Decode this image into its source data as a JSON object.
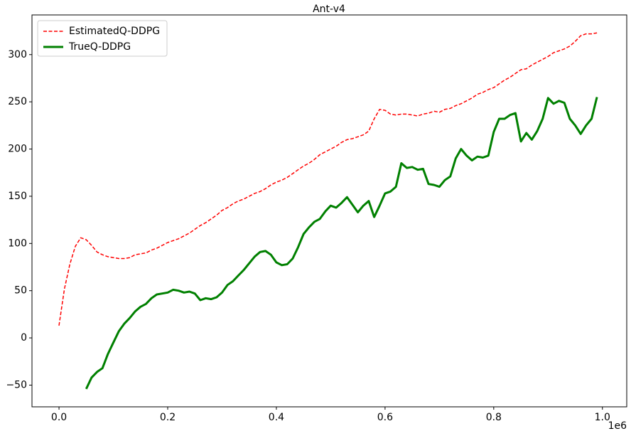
{
  "chart_data": {
    "type": "line",
    "title": "Ant-v4",
    "x": [
      0,
      10000,
      20000,
      30000,
      40000,
      50000,
      60000,
      70000,
      80000,
      90000,
      100000,
      110000,
      120000,
      130000,
      140000,
      150000,
      160000,
      170000,
      180000,
      190000,
      200000,
      210000,
      220000,
      230000,
      240000,
      250000,
      260000,
      270000,
      280000,
      290000,
      300000,
      310000,
      320000,
      330000,
      340000,
      350000,
      360000,
      370000,
      380000,
      390000,
      400000,
      410000,
      420000,
      430000,
      440000,
      450000,
      460000,
      470000,
      480000,
      490000,
      500000,
      510000,
      520000,
      530000,
      540000,
      550000,
      560000,
      570000,
      580000,
      590000,
      600000,
      610000,
      620000,
      630000,
      640000,
      650000,
      660000,
      670000,
      680000,
      690000,
      700000,
      710000,
      720000,
      730000,
      740000,
      750000,
      760000,
      770000,
      780000,
      790000,
      800000,
      810000,
      820000,
      830000,
      840000,
      850000,
      860000,
      870000,
      880000,
      890000,
      900000,
      910000,
      920000,
      930000,
      940000,
      950000,
      960000,
      970000,
      980000,
      990000
    ],
    "x_offset_label": "1e6",
    "series": [
      {
        "name": "EstimatedQ-DDPG",
        "color": "#ff0000",
        "linestyle": "dashed",
        "linewidth": 1.5,
        "values": [
          13,
          52,
          78,
          97,
          106,
          104,
          98,
          91,
          88,
          86,
          85,
          84,
          84,
          85,
          88,
          89,
          90,
          93,
          95,
          98,
          101,
          103,
          105,
          108,
          111,
          115,
          119,
          122,
          126,
          130,
          135,
          138,
          142,
          145,
          147,
          150,
          153,
          155,
          158,
          162,
          165,
          167,
          170,
          174,
          178,
          182,
          185,
          189,
          194,
          197,
          200,
          203,
          207,
          210,
          211,
          213,
          215,
          219,
          232,
          242,
          241,
          237,
          236,
          237,
          237,
          236,
          235,
          237,
          238,
          240,
          239,
          242,
          243,
          246,
          248,
          251,
          254,
          258,
          260,
          263,
          265,
          269,
          273,
          276,
          280,
          284,
          285,
          289,
          292,
          295,
          298,
          302,
          304,
          306,
          309,
          314,
          320,
          322,
          322,
          323
        ]
      },
      {
        "name": "TrueQ-DDPG",
        "color": "#008000",
        "linestyle": "solid",
        "linewidth": 3,
        "values": [
          null,
          null,
          null,
          null,
          null,
          -54,
          -42,
          -36,
          -32,
          -17,
          -5,
          7,
          15,
          21,
          28,
          33,
          36,
          42,
          46,
          47,
          48,
          51,
          50,
          48,
          49,
          47,
          40,
          42,
          41,
          43,
          48,
          56,
          60,
          66,
          72,
          79,
          86,
          91,
          92,
          88,
          80,
          77,
          78,
          84,
          96,
          110,
          117,
          123,
          126,
          134,
          140,
          138,
          143,
          149,
          141,
          133,
          140,
          145,
          128,
          140,
          153,
          155,
          160,
          185,
          180,
          181,
          178,
          179,
          163,
          162,
          160,
          167,
          171,
          190,
          200,
          193,
          188,
          192,
          191,
          193,
          218,
          232,
          232,
          236,
          238,
          208,
          217,
          210,
          219,
          232,
          254,
          248,
          251,
          249,
          232,
          225,
          216,
          225,
          232,
          255
        ]
      }
    ],
    "xlim": [
      -49750,
      1044750
    ],
    "ylim": [
      -73,
      342
    ],
    "xticks": [
      {
        "value": 0,
        "label": "0.0"
      },
      {
        "value": 200000,
        "label": "0.2"
      },
      {
        "value": 400000,
        "label": "0.4"
      },
      {
        "value": 600000,
        "label": "0.6"
      },
      {
        "value": 800000,
        "label": "0.8"
      },
      {
        "value": 1000000,
        "label": "1.0"
      }
    ],
    "yticks": [
      {
        "value": -50,
        "label": "−50"
      },
      0,
      50,
      100,
      150,
      200,
      250,
      300
    ],
    "grid": false,
    "legend": "upper-left"
  }
}
